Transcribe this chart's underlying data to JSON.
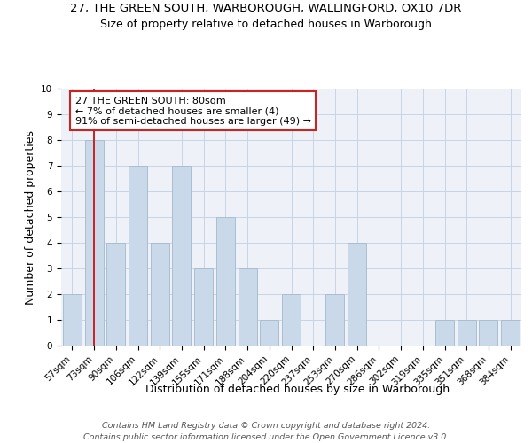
{
  "title1": "27, THE GREEN SOUTH, WARBOROUGH, WALLINGFORD, OX10 7DR",
  "title2": "Size of property relative to detached houses in Warborough",
  "xlabel": "Distribution of detached houses by size in Warborough",
  "ylabel": "Number of detached properties",
  "categories": [
    "57sqm",
    "73sqm",
    "90sqm",
    "106sqm",
    "122sqm",
    "139sqm",
    "155sqm",
    "171sqm",
    "188sqm",
    "204sqm",
    "220sqm",
    "237sqm",
    "253sqm",
    "270sqm",
    "286sqm",
    "302sqm",
    "319sqm",
    "335sqm",
    "351sqm",
    "368sqm",
    "384sqm"
  ],
  "values": [
    2,
    8,
    4,
    7,
    4,
    7,
    3,
    5,
    3,
    1,
    2,
    0,
    2,
    4,
    0,
    0,
    0,
    1,
    1,
    1,
    1
  ],
  "bar_color": "#c9d9ea",
  "bar_edge_color": "#a8bfd0",
  "vline_x": 1,
  "vline_color": "#cc2222",
  "annotation_text": "27 THE GREEN SOUTH: 80sqm\n← 7% of detached houses are smaller (4)\n91% of semi-detached houses are larger (49) →",
  "annotation_box_color": "#ffffff",
  "annotation_box_edge": "#cc2222",
  "ylim": [
    0,
    10
  ],
  "yticks": [
    0,
    1,
    2,
    3,
    4,
    5,
    6,
    7,
    8,
    9,
    10
  ],
  "footnote1": "Contains HM Land Registry data © Crown copyright and database right 2024.",
  "footnote2": "Contains public sector information licensed under the Open Government Licence v3.0.",
  "title1_fontsize": 9.5,
  "title2_fontsize": 9,
  "xlabel_fontsize": 9,
  "ylabel_fontsize": 9,
  "tick_fontsize": 7.5,
  "footnote_fontsize": 6.8,
  "annotation_fontsize": 8,
  "background_color": "#eef2f8",
  "grid_color": "#c8d4e4"
}
